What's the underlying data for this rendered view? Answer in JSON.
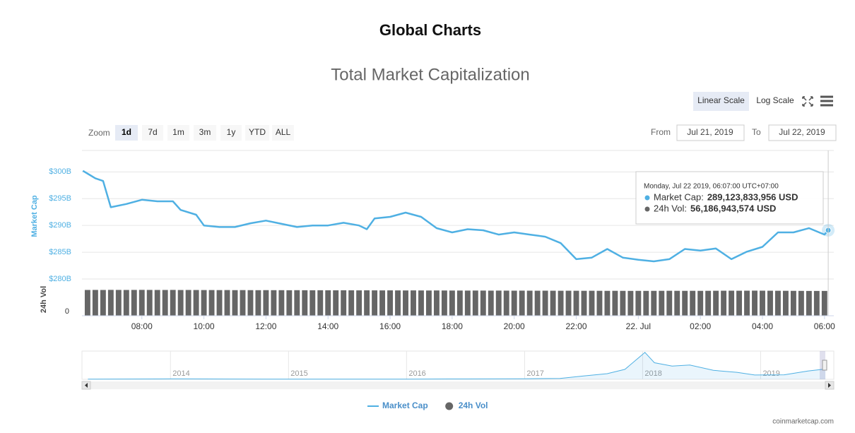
{
  "page_title": "Global Charts",
  "controls": {
    "scale_buttons": [
      "Linear Scale",
      "Log Scale"
    ],
    "active_scale": 0,
    "zoom_label": "Zoom",
    "zoom_buttons": [
      "1d",
      "7d",
      "1m",
      "3m",
      "1y",
      "YTD",
      "ALL"
    ],
    "active_zoom": 0,
    "from_label": "From",
    "from_value": "Jul 21, 2019",
    "to_label": "To",
    "to_value": "Jul 22, 2019"
  },
  "chart_data": [
    {
      "type": "line",
      "title": "Total Market Capitalization",
      "ylabel": "Market Cap",
      "x": [
        6.1,
        6.5,
        6.75,
        7,
        7.5,
        8,
        8.5,
        9,
        9.25,
        9.75,
        10,
        10.5,
        11,
        11.5,
        12,
        12.5,
        13,
        13.5,
        14,
        14.5,
        15,
        15.25,
        15.5,
        16,
        16.5,
        17,
        17.5,
        18,
        18.5,
        19,
        19.5,
        20,
        20.5,
        21,
        21.5,
        22,
        22.5,
        23,
        23.5,
        24,
        24.5,
        25,
        25.5,
        26,
        26.5,
        27,
        27.5,
        28,
        28.5,
        29,
        29.5,
        30,
        30.12
      ],
      "series": [
        {
          "name": "Market Cap",
          "color": "#4fb0e3",
          "values": [
            300.2,
            298.8,
            298.3,
            293.4,
            294.0,
            294.8,
            294.5,
            294.5,
            292.9,
            292.0,
            290.0,
            289.7,
            289.7,
            290.4,
            290.9,
            290.3,
            289.7,
            290.0,
            290.0,
            290.5,
            290.0,
            289.3,
            291.3,
            291.6,
            292.4,
            291.6,
            289.5,
            288.7,
            289.3,
            289.1,
            288.3,
            288.7,
            288.3,
            287.9,
            286.7,
            283.7,
            284.0,
            285.6,
            284.0,
            283.6,
            283.3,
            283.7,
            285.6,
            285.3,
            285.7,
            283.7,
            285.1,
            286.0,
            288.7,
            288.7,
            289.5,
            288.3,
            289.1
          ]
        }
      ],
      "xlim": [
        6.07,
        30.3
      ],
      "xticks": [
        {
          "value": 8,
          "label": "08:00"
        },
        {
          "value": 10,
          "label": "10:00"
        },
        {
          "value": 12,
          "label": "12:00"
        },
        {
          "value": 14,
          "label": "14:00"
        },
        {
          "value": 16,
          "label": "16:00"
        },
        {
          "value": 18,
          "label": "18:00"
        },
        {
          "value": 20,
          "label": "20:00"
        },
        {
          "value": 22,
          "label": "22:00"
        },
        {
          "value": 24,
          "label": "22. Jul"
        },
        {
          "value": 26,
          "label": "02:00"
        },
        {
          "value": 28,
          "label": "04:00"
        },
        {
          "value": 30,
          "label": "06:00"
        }
      ],
      "ylim": [
        280,
        304
      ],
      "yticks": [
        {
          "value": 280,
          "label": "$280B"
        },
        {
          "value": 285,
          "label": "$285B"
        },
        {
          "value": 290,
          "label": "$290B"
        },
        {
          "value": 295,
          "label": "$295B"
        },
        {
          "value": 300,
          "label": "$300B"
        }
      ],
      "grid": true,
      "tooltip": {
        "date": "Monday, Jul 22 2019, 06:07:00 UTC+07:00",
        "items": [
          {
            "label": "Market Cap:",
            "value": "289,123,833,956 USD"
          },
          {
            "label": "24h Vol:",
            "value": "56,186,943,574 USD"
          }
        ]
      }
    },
    {
      "type": "bar",
      "ylabel": "24h Vol",
      "x": [
        6.25,
        6.5,
        6.75,
        7,
        7.25,
        7.5,
        7.75,
        8,
        8.25,
        8.5,
        8.75,
        9,
        9.25,
        9.5,
        9.75,
        10,
        10.25,
        10.5,
        10.75,
        11,
        11.25,
        11.5,
        11.75,
        12,
        12.25,
        12.5,
        12.75,
        13,
        13.25,
        13.5,
        13.75,
        14,
        14.25,
        14.5,
        14.75,
        15,
        15.25,
        15.5,
        15.75,
        16,
        16.25,
        16.5,
        16.75,
        17,
        17.25,
        17.5,
        17.75,
        18,
        18.25,
        18.5,
        18.75,
        19,
        19.25,
        19.5,
        19.75,
        20,
        20.25,
        20.5,
        20.75,
        21,
        21.25,
        21.5,
        21.75,
        22,
        22.25,
        22.5,
        22.75,
        23,
        23.25,
        23.5,
        23.75,
        24,
        24.25,
        24.5,
        24.75,
        25,
        25.25,
        25.5,
        25.75,
        26,
        26.25,
        26.5,
        26.75,
        27,
        27.25,
        27.5,
        27.75,
        28,
        28.25,
        28.5,
        28.75,
        29,
        29.25,
        29.5,
        29.75,
        30
      ],
      "series": [
        {
          "name": "24h Vol",
          "color": "#666666",
          "values": [
            58.4,
            58.5,
            58.4,
            58.6,
            58.5,
            58.4,
            58.5,
            58.6,
            58.5,
            58.4,
            58.4,
            58.5,
            58.3,
            58.4,
            58.3,
            58.2,
            58.2,
            58.1,
            58.2,
            58.0,
            58.1,
            58.0,
            57.9,
            58.0,
            57.9,
            57.9,
            57.8,
            57.9,
            57.8,
            57.7,
            57.8,
            57.7,
            57.6,
            57.7,
            57.6,
            57.5,
            57.6,
            57.5,
            57.4,
            57.5,
            57.4,
            57.3,
            57.4,
            57.3,
            57.2,
            57.3,
            57.2,
            57.1,
            57.1,
            57.0,
            57.1,
            57.0,
            56.9,
            57.0,
            56.9,
            56.8,
            56.9,
            56.8,
            56.7,
            56.8,
            56.7,
            56.6,
            56.7,
            56.6,
            56.5,
            56.6,
            56.5,
            56.4,
            56.5,
            56.4,
            56.3,
            56.4,
            56.3,
            56.4,
            56.5,
            56.6,
            56.5,
            56.4,
            56.5,
            56.4,
            56.5,
            56.6,
            56.7,
            56.8,
            56.7,
            56.8,
            56.9,
            56.8,
            56.7,
            56.6,
            56.5,
            56.4,
            56.3,
            56.2,
            56.2,
            56.2
          ]
        }
      ],
      "xlim": [
        6.07,
        30.3
      ],
      "ylim": [
        0,
        72
      ],
      "yticks": [
        0
      ]
    },
    {
      "type": "area",
      "x": [
        2013.3,
        2013.9,
        2014.0,
        2014.5,
        2015.0,
        2015.5,
        2016.0,
        2016.5,
        2017.0,
        2017.3,
        2017.5,
        2017.7,
        2017.85,
        2017.95,
        2018.02,
        2018.1,
        2018.25,
        2018.4,
        2018.6,
        2018.8,
        2018.95,
        2019.2,
        2019.4,
        2019.55
      ],
      "series": [
        {
          "name": "Market Cap",
          "color": "#4fb0e3",
          "values": [
            5,
            10,
            12,
            9,
            5,
            4,
            7,
            10,
            18,
            25,
            100,
            170,
            300,
            600,
            810,
            500,
            400,
            430,
            270,
            210,
            130,
            135,
            250,
            310
          ]
        }
      ],
      "xlim": [
        2013.25,
        2019.62
      ],
      "ylim": [
        0,
        850
      ],
      "xticks": [
        2014,
        2015,
        2016,
        2017,
        2018,
        2019
      ]
    }
  ],
  "credit": "coinmarketcap.com"
}
